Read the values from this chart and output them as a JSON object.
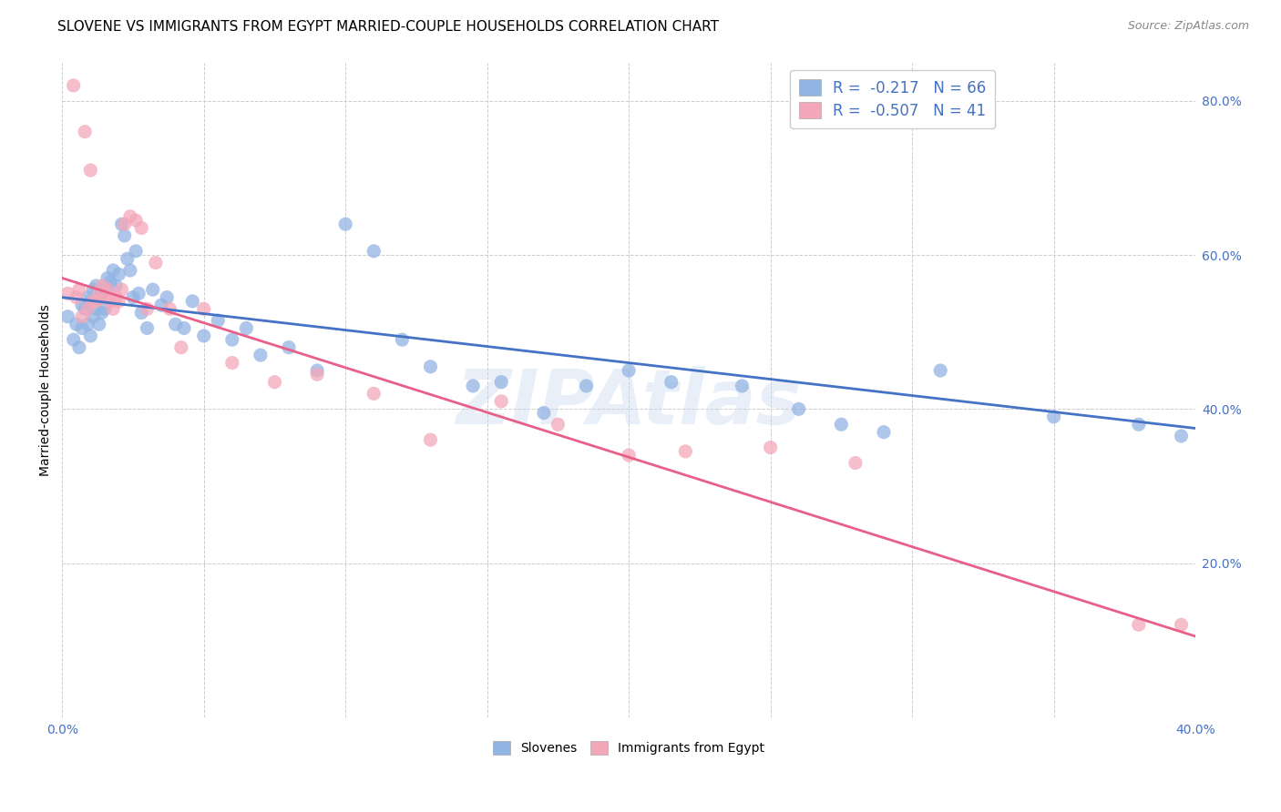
{
  "title": "SLOVENE VS IMMIGRANTS FROM EGYPT MARRIED-COUPLE HOUSEHOLDS CORRELATION CHART",
  "source": "Source: ZipAtlas.com",
  "ylabel": "Married-couple Households",
  "watermark": "ZIPAtlas",
  "xmin": 0.0,
  "xmax": 0.4,
  "ymin": 0.0,
  "ymax": 0.85,
  "xtick_positions": [
    0.0,
    0.4
  ],
  "xtick_labels": [
    "0.0%",
    "40.0%"
  ],
  "ytick_positions_right": [
    0.2,
    0.4,
    0.6,
    0.8
  ],
  "ytick_labels_right": [
    "20.0%",
    "40.0%",
    "60.0%",
    "80.0%"
  ],
  "blue_color": "#92b4e3",
  "pink_color": "#f4a7b9",
  "blue_line_color": "#4472c4",
  "pink_line_color": "#e8608a",
  "legend_label_blue": "Slovenes",
  "legend_label_pink": "Immigrants from Egypt",
  "blue_scatter_x": [
    0.002,
    0.004,
    0.005,
    0.006,
    0.007,
    0.007,
    0.008,
    0.009,
    0.009,
    0.01,
    0.01,
    0.011,
    0.011,
    0.012,
    0.012,
    0.013,
    0.013,
    0.014,
    0.014,
    0.015,
    0.015,
    0.016,
    0.017,
    0.018,
    0.019,
    0.02,
    0.021,
    0.022,
    0.023,
    0.024,
    0.025,
    0.026,
    0.027,
    0.028,
    0.03,
    0.032,
    0.035,
    0.037,
    0.04,
    0.043,
    0.046,
    0.05,
    0.055,
    0.06,
    0.065,
    0.07,
    0.08,
    0.09,
    0.1,
    0.11,
    0.12,
    0.13,
    0.145,
    0.155,
    0.17,
    0.185,
    0.2,
    0.215,
    0.24,
    0.26,
    0.275,
    0.29,
    0.31,
    0.35,
    0.38,
    0.395
  ],
  "blue_scatter_y": [
    0.52,
    0.49,
    0.51,
    0.48,
    0.535,
    0.505,
    0.53,
    0.545,
    0.51,
    0.54,
    0.495,
    0.555,
    0.52,
    0.56,
    0.53,
    0.545,
    0.51,
    0.55,
    0.525,
    0.555,
    0.53,
    0.57,
    0.565,
    0.58,
    0.56,
    0.575,
    0.64,
    0.625,
    0.595,
    0.58,
    0.545,
    0.605,
    0.55,
    0.525,
    0.505,
    0.555,
    0.535,
    0.545,
    0.51,
    0.505,
    0.54,
    0.495,
    0.515,
    0.49,
    0.505,
    0.47,
    0.48,
    0.45,
    0.64,
    0.605,
    0.49,
    0.455,
    0.43,
    0.435,
    0.395,
    0.43,
    0.45,
    0.435,
    0.43,
    0.4,
    0.38,
    0.37,
    0.45,
    0.39,
    0.38,
    0.365
  ],
  "pink_scatter_x": [
    0.002,
    0.004,
    0.005,
    0.006,
    0.007,
    0.008,
    0.009,
    0.01,
    0.011,
    0.012,
    0.013,
    0.014,
    0.015,
    0.016,
    0.017,
    0.018,
    0.019,
    0.02,
    0.021,
    0.022,
    0.024,
    0.026,
    0.028,
    0.03,
    0.033,
    0.038,
    0.042,
    0.05,
    0.06,
    0.075,
    0.09,
    0.11,
    0.13,
    0.155,
    0.175,
    0.2,
    0.22,
    0.25,
    0.28,
    0.38,
    0.395
  ],
  "pink_scatter_y": [
    0.55,
    0.82,
    0.545,
    0.555,
    0.52,
    0.76,
    0.53,
    0.71,
    0.54,
    0.54,
    0.55,
    0.56,
    0.545,
    0.555,
    0.54,
    0.53,
    0.545,
    0.54,
    0.555,
    0.64,
    0.65,
    0.645,
    0.635,
    0.53,
    0.59,
    0.53,
    0.48,
    0.53,
    0.46,
    0.435,
    0.445,
    0.42,
    0.36,
    0.41,
    0.38,
    0.34,
    0.345,
    0.35,
    0.33,
    0.12,
    0.12
  ],
  "blue_trend_x": [
    0.0,
    0.4
  ],
  "blue_trend_y": [
    0.545,
    0.375
  ],
  "pink_trend_x": [
    0.0,
    0.4
  ],
  "pink_trend_y": [
    0.57,
    0.105
  ],
  "background_color": "#ffffff",
  "grid_color": "#cccccc",
  "title_fontsize": 11,
  "axis_label_fontsize": 10,
  "tick_fontsize": 10,
  "legend_fontsize": 12,
  "source_fontsize": 9
}
